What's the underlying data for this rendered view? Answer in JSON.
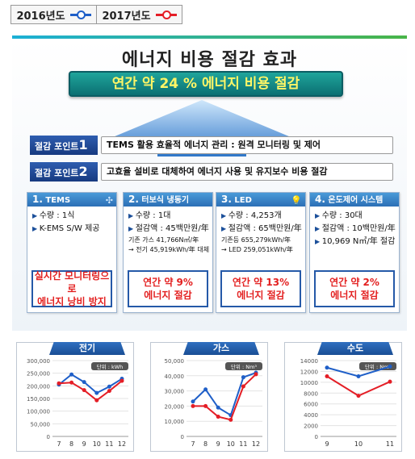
{
  "legend": {
    "items": [
      {
        "label": "2016년도",
        "color": "#1f5fc8"
      },
      {
        "label": "2017년도",
        "color": "#e41e26"
      }
    ]
  },
  "infographic": {
    "title": "에너지 비용 절감 효과",
    "banner": "연간 약 24 %  에너지 비용 절감",
    "points": [
      {
        "tag": "절감 포인트",
        "num": "1",
        "text": "TEMS 활용 효율적 에너지 관리 : 원격 모니터링 및 제어"
      },
      {
        "tag": "절감 포인트",
        "num": "2",
        "text": "고효율 설비로 대체하여 에너지 사용 및 유지보수 비용 절감"
      }
    ],
    "cards": [
      {
        "num": "1.",
        "title": "TEMS",
        "icon": "fan-icon",
        "items": [
          {
            "t": "수량 : 1식",
            "k": "b"
          },
          {
            "t": "K-EMS S/W 제공",
            "k": "b"
          }
        ],
        "result": [
          "실시간 모니터링으로",
          "에너지 낭비 방지"
        ]
      },
      {
        "num": "2.",
        "title": "터보식 냉동기",
        "icon": "",
        "items": [
          {
            "t": "수량 : 1대",
            "k": "b"
          },
          {
            "t": "절감액 : 45백만원/年",
            "k": "b"
          },
          {
            "t": "기존 가스  41,766N㎥/年",
            "k": "s"
          },
          {
            "t": "→ 전기  45,919kWh/年    대체",
            "k": "s"
          }
        ],
        "result": [
          "연간 약 9%",
          "에너지 절감"
        ]
      },
      {
        "num": "3.",
        "title": "LED",
        "icon": "bulb-icon",
        "items": [
          {
            "t": "수량 : 4,253개",
            "k": "b"
          },
          {
            "t": "절감액 : 65백만원/年",
            "k": "b"
          },
          {
            "t": "기존등  655,279kWh/年",
            "k": "s"
          },
          {
            "t": "→ LED  259,051kWh/年",
            "k": "s"
          }
        ],
        "result": [
          "연간 약 13%",
          "에너지 절감"
        ]
      },
      {
        "num": "4.",
        "title": "온도제어 시스템",
        "icon": "",
        "items": [
          {
            "t": "수량 : 30대",
            "k": "b"
          },
          {
            "t": "절감액 : 10백만원/年",
            "k": "b"
          },
          {
            "t": "10,969  N㎥/年  절감",
            "k": "b"
          }
        ],
        "result": [
          "연간 약 2%",
          "에너지 절감"
        ]
      }
    ]
  },
  "chart_data": [
    {
      "type": "line",
      "title": "전기",
      "unit": "단위 : kWh",
      "x": [
        7,
        8,
        9,
        10,
        11,
        12
      ],
      "ylim": [
        0,
        300000
      ],
      "yticks": [
        "0",
        "50,000",
        "100,000",
        "150,000",
        "200,000",
        "250,000",
        "300,000"
      ],
      "series": [
        {
          "name": "2016년도",
          "values": [
            205000,
            245000,
            215000,
            172000,
            197000,
            228000
          ]
        },
        {
          "name": "2017년도",
          "values": [
            210000,
            213000,
            183000,
            143000,
            180000,
            220000
          ]
        }
      ]
    },
    {
      "type": "line",
      "title": "가스",
      "unit": "단위 : Nm³",
      "x": [
        7,
        8,
        9,
        10,
        11,
        12
      ],
      "ylim": [
        0,
        50000
      ],
      "yticks": [
        "0",
        "10,000",
        "20,000",
        "30,000",
        "40,000",
        "50,000"
      ],
      "series": [
        {
          "name": "2016년도",
          "values": [
            23000,
            31000,
            19000,
            14000,
            39000,
            42000
          ]
        },
        {
          "name": "2017년도",
          "values": [
            20000,
            20000,
            13000,
            11000,
            33000,
            41000
          ]
        }
      ]
    },
    {
      "type": "line",
      "title": "수도",
      "unit": "단위 : Nm³",
      "x": [
        9,
        10,
        11
      ],
      "ylim": [
        0,
        14000
      ],
      "yticks": [
        "0",
        "2000",
        "4000",
        "6000",
        "8000",
        "10000",
        "12000",
        "14000"
      ],
      "series": [
        {
          "name": "2016년도",
          "values": [
            12700,
            11100,
            12900
          ]
        },
        {
          "name": "2017년도",
          "values": [
            11100,
            7500,
            10100
          ]
        }
      ]
    }
  ]
}
